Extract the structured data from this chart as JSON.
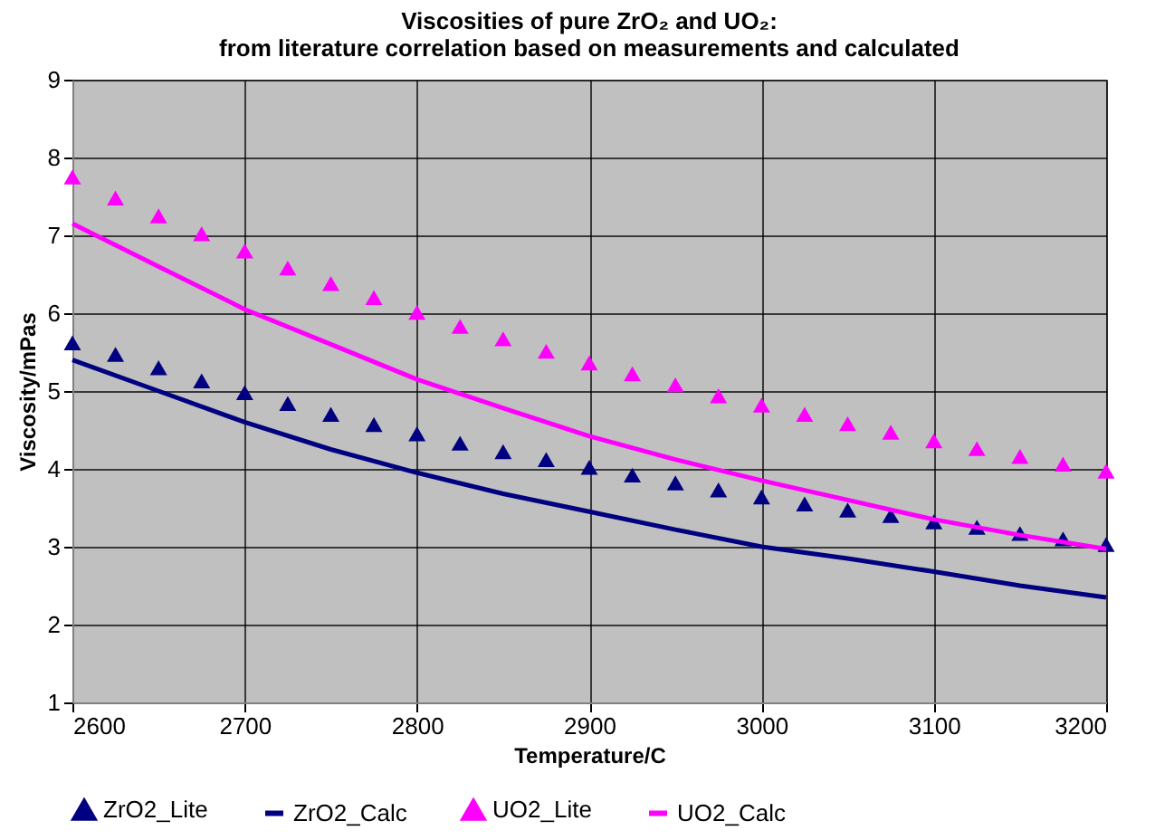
{
  "chart_data": {
    "type": "line",
    "title": [
      "Viscosities of pure ZrO₂ and UO₂:",
      "from literature correlation based on measurements and calculated"
    ],
    "xlabel": "Temperature/C",
    "ylabel": "Viscosity/mPas",
    "xlim": [
      2600,
      3200
    ],
    "ylim": [
      1,
      9
    ],
    "xticks": [
      2600,
      2700,
      2800,
      2900,
      3000,
      3100,
      3200
    ],
    "yticks": [
      1,
      2,
      3,
      4,
      5,
      6,
      7,
      8,
      9
    ],
    "grid": true,
    "legend": "bottom",
    "series": [
      {
        "name": "ZrO2_Lite",
        "type": "scatter",
        "marker": "triangle",
        "color": "#000080",
        "x": [
          2600,
          2625,
          2650,
          2675,
          2700,
          2725,
          2750,
          2775,
          2800,
          2825,
          2850,
          2875,
          2900,
          2925,
          2950,
          2975,
          3000,
          3025,
          3050,
          3075,
          3100,
          3125,
          3150,
          3175,
          3200
        ],
        "values": [
          5.62,
          5.47,
          5.3,
          5.13,
          4.98,
          4.84,
          4.7,
          4.57,
          4.45,
          4.33,
          4.22,
          4.12,
          4.02,
          3.92,
          3.82,
          3.73,
          3.64,
          3.55,
          3.47,
          3.4,
          3.32,
          3.25,
          3.17,
          3.1,
          3.03
        ]
      },
      {
        "name": "ZrO2_Calc",
        "marker": "none",
        "color": "#000080",
        "x": [
          2600,
          2650,
          2700,
          2750,
          2800,
          2850,
          2900,
          2950,
          3000,
          3050,
          3100,
          3150,
          3200
        ],
        "values": [
          5.4,
          5.0,
          4.6,
          4.25,
          3.95,
          3.68,
          3.45,
          3.22,
          3.0,
          2.85,
          2.68,
          2.5,
          2.35
        ]
      },
      {
        "name": "UO2_Lite",
        "type": "scatter",
        "marker": "triangle",
        "color": "#ff00ff",
        "x": [
          2600,
          2625,
          2650,
          2675,
          2700,
          2725,
          2750,
          2775,
          2800,
          2825,
          2850,
          2875,
          2900,
          2925,
          2950,
          2975,
          3000,
          3025,
          3050,
          3075,
          3100,
          3125,
          3150,
          3175,
          3200
        ],
        "values": [
          7.75,
          7.48,
          7.25,
          7.02,
          6.8,
          6.58,
          6.38,
          6.2,
          6.01,
          5.83,
          5.67,
          5.51,
          5.36,
          5.22,
          5.08,
          4.94,
          4.82,
          4.7,
          4.58,
          4.47,
          4.36,
          4.26,
          4.16,
          4.06,
          3.97
        ]
      },
      {
        "name": "UO2_Calc",
        "marker": "none",
        "color": "#ff00ff",
        "x": [
          2600,
          2650,
          2700,
          2750,
          2800,
          2850,
          2900,
          2950,
          3000,
          3050,
          3100,
          3150,
          3200
        ],
        "values": [
          7.15,
          6.6,
          6.05,
          5.6,
          5.15,
          4.78,
          4.42,
          4.12,
          3.85,
          3.6,
          3.35,
          3.15,
          2.97
        ]
      }
    ]
  }
}
